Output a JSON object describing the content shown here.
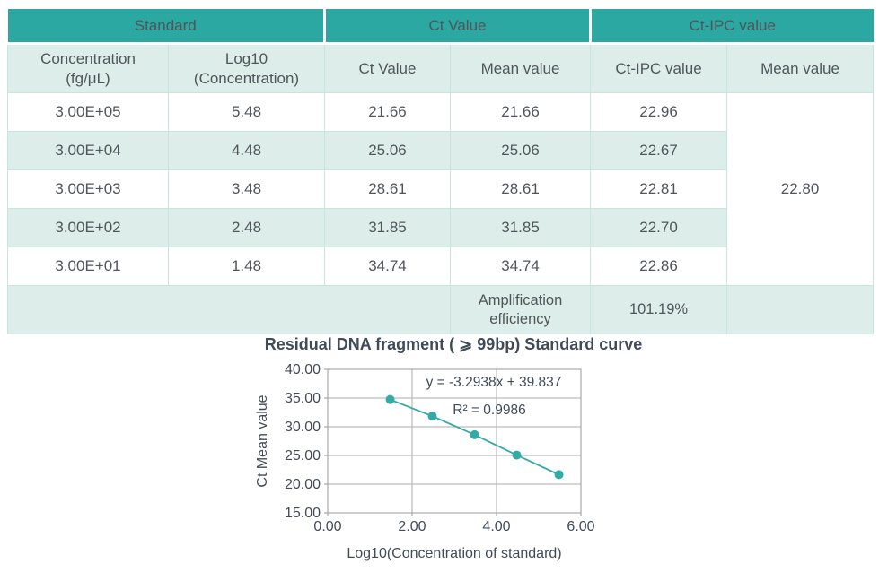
{
  "colors": {
    "header_teal": "#2aa8a1",
    "row_light_teal": "#ddeeea",
    "cell_border": "#c9e3dd",
    "table_text": "#50555b",
    "header_text": "#ffffff",
    "chart_text": "#414b58",
    "grid_gray": "#ababab",
    "series_teal": "#33aaa5"
  },
  "table": {
    "groups": [
      "Standard",
      "Ct Value",
      "Ct-IPC value"
    ],
    "columns": [
      "Concentration\n(fg/μL)",
      "Log10\n(Concentration)",
      "Ct Value",
      "Mean value",
      "Ct-IPC value",
      "Mean value"
    ],
    "rows": [
      [
        "3.00E+05",
        "5.48",
        "21.66",
        "21.66",
        "22.96"
      ],
      [
        "3.00E+04",
        "4.48",
        "25.06",
        "25.06",
        "22.67"
      ],
      [
        "3.00E+03",
        "3.48",
        "28.61",
        "28.61",
        "22.81"
      ],
      [
        "3.00E+02",
        "2.48",
        "31.85",
        "31.85",
        "22.70"
      ],
      [
        "3.00E+01",
        "1.48",
        "34.74",
        "34.74",
        "22.86"
      ]
    ],
    "ct_ipc_mean_value": "22.80",
    "footer": {
      "label": "Amplification\nefficiency",
      "value": "101.19%"
    }
  },
  "chart_data": {
    "type": "scatter",
    "title": "Residual DNA fragment ( ⩾ 99bp) Standard curve",
    "xlabel": "Log10(Concentration of standard)",
    "ylabel": "Ct Mean value",
    "xlim": [
      0,
      6
    ],
    "ylim": [
      15,
      40
    ],
    "x_ticks": [
      0,
      2,
      4,
      6
    ],
    "x_tick_labels": [
      "0.00",
      "2.00",
      "4.00",
      "6.00"
    ],
    "y_ticks": [
      15,
      20,
      25,
      30,
      35,
      40
    ],
    "y_tick_labels": [
      "15.00",
      "20.00",
      "25.00",
      "30.00",
      "35.00",
      "40.00"
    ],
    "grid": true,
    "legend": "none",
    "series": [
      {
        "name": "Ct Mean value",
        "x": [
          1.48,
          2.48,
          3.48,
          4.48,
          5.48
        ],
        "y": [
          34.74,
          31.85,
          28.61,
          25.06,
          21.66
        ],
        "marker": "circle",
        "line": true
      }
    ],
    "annotation": {
      "equation": "y = -3.2938x + 39.837",
      "r_squared": "R² = 0.9986"
    }
  }
}
